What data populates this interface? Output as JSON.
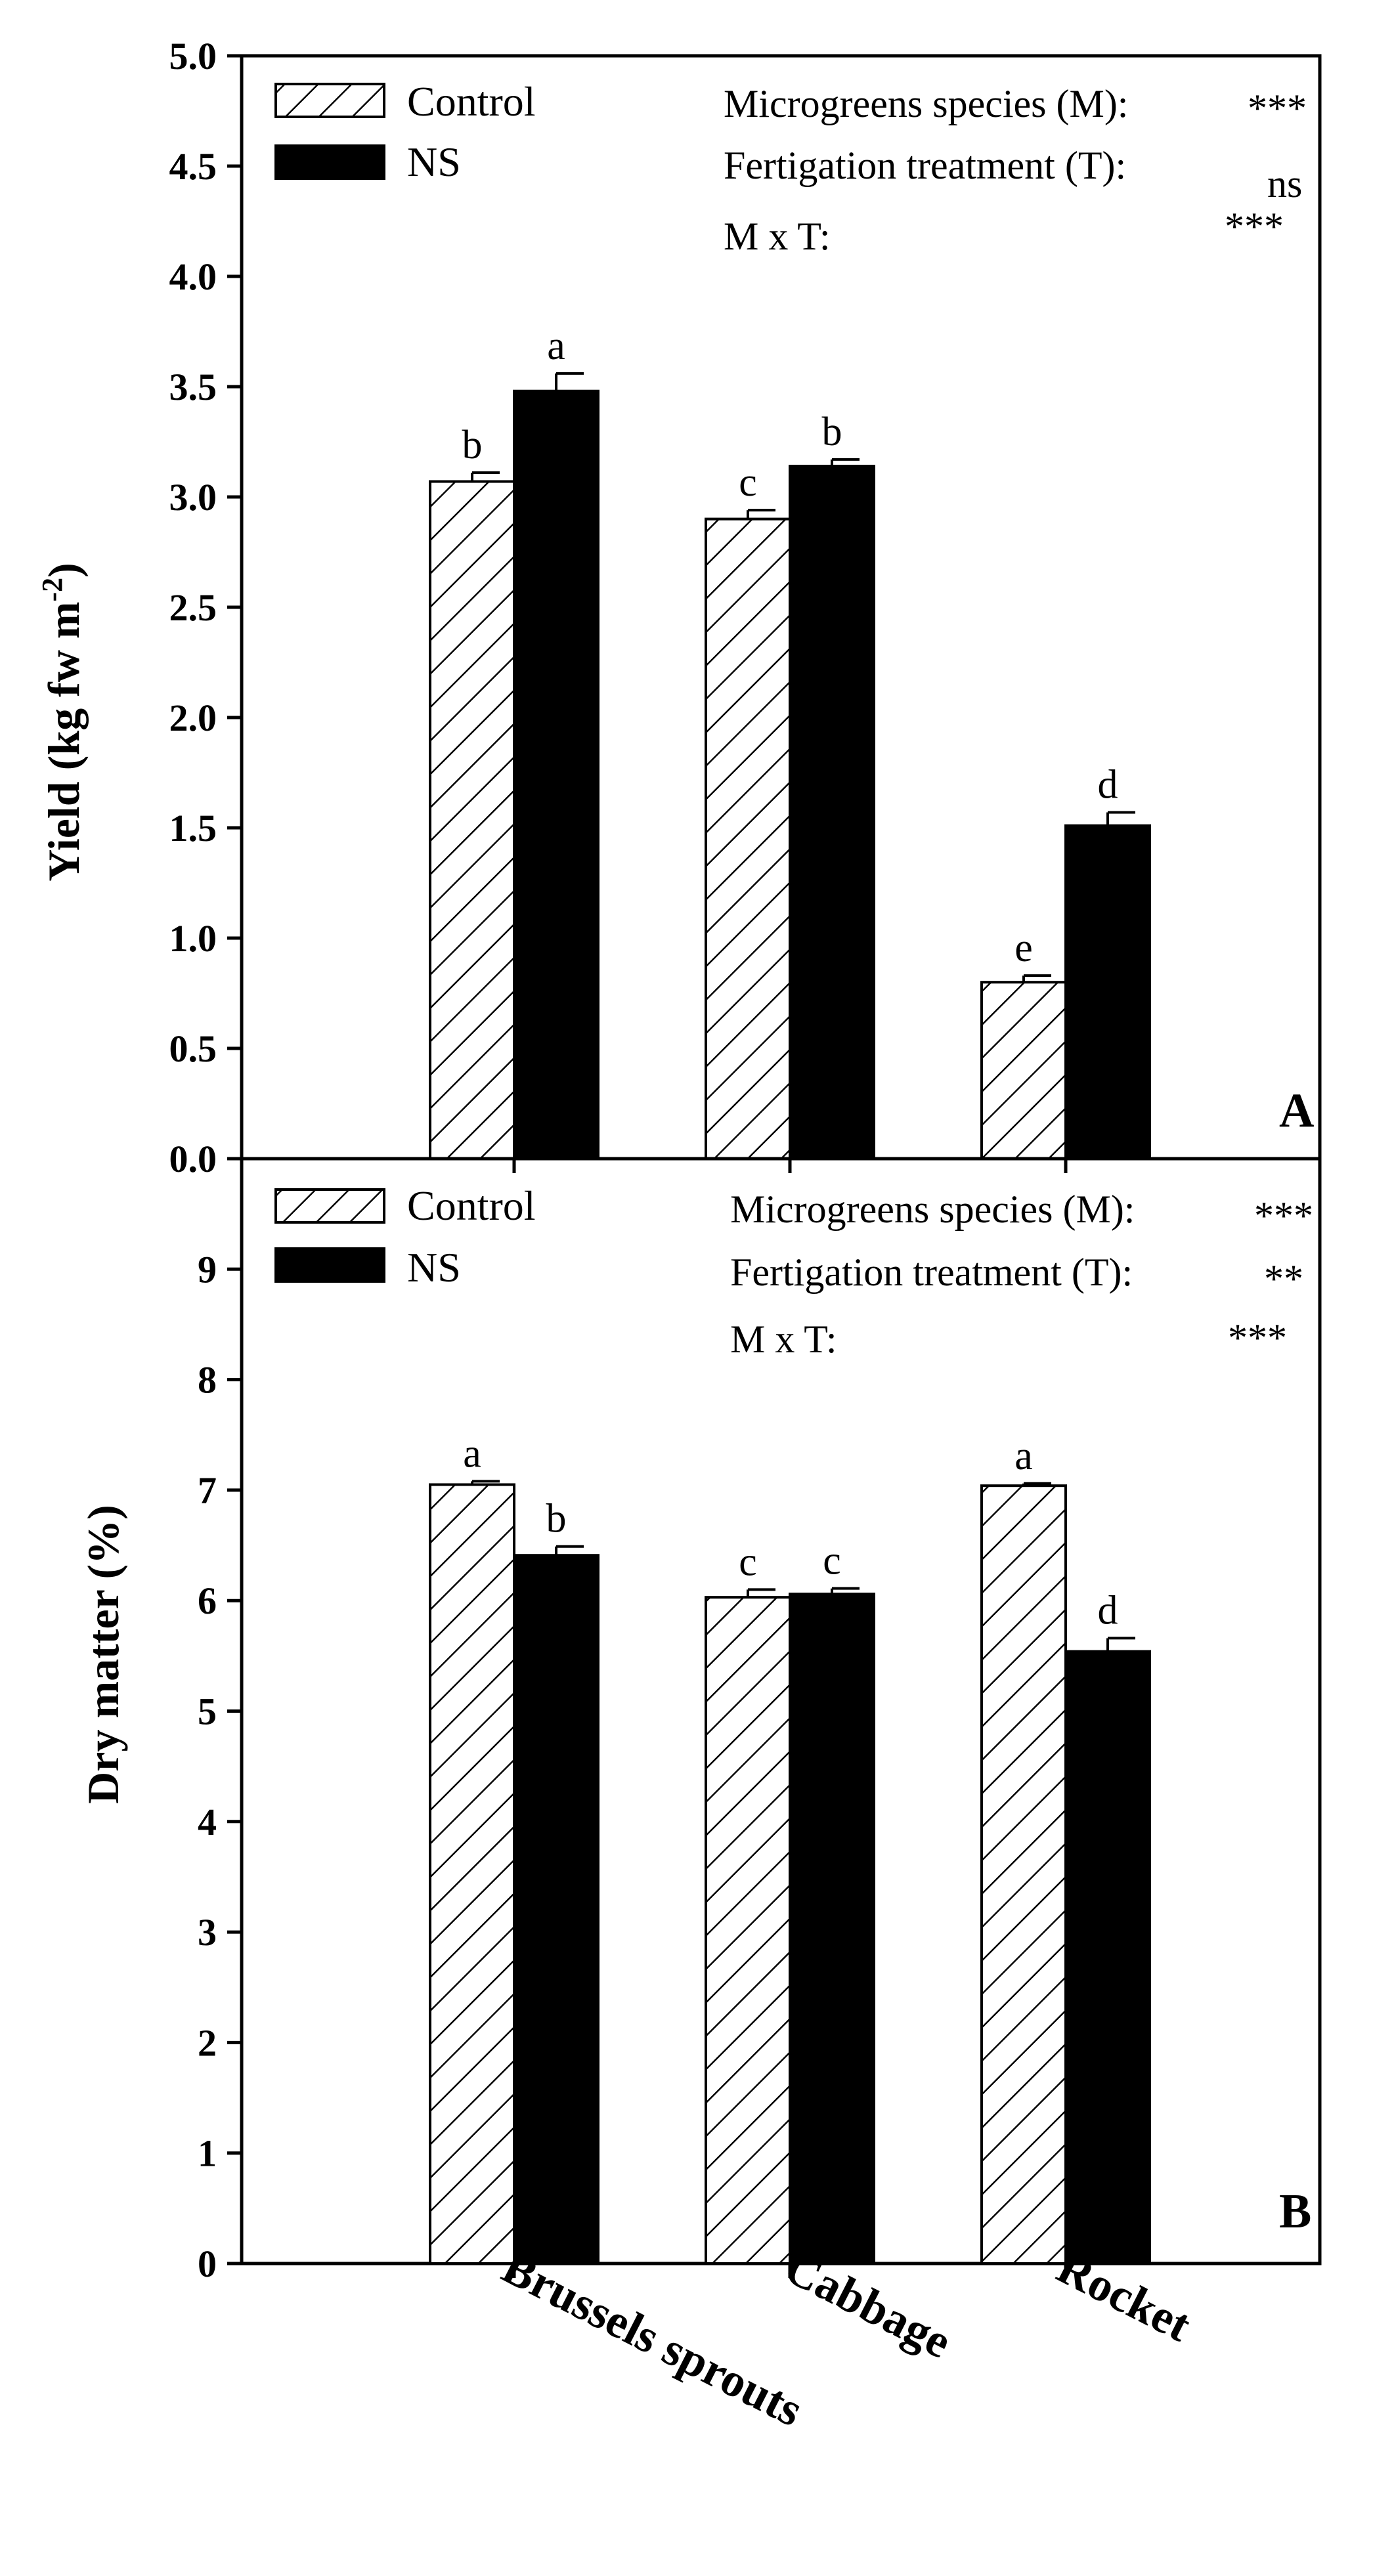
{
  "chart_data": [
    {
      "type": "bar",
      "panel": "A",
      "categories": [
        "Brussels sprouts",
        "Cabbage",
        "Rocket"
      ],
      "series": [
        {
          "name": "Control",
          "pattern": "hatched",
          "values": [
            3.07,
            2.9,
            0.8
          ],
          "errors": [
            0.04,
            0.04,
            0.03
          ],
          "letters": [
            "b",
            "c",
            "e"
          ]
        },
        {
          "name": "NS",
          "pattern": "solid",
          "values": [
            3.48,
            3.14,
            1.51
          ],
          "errors": [
            0.08,
            0.03,
            0.06
          ],
          "letters": [
            "a",
            "b",
            "d"
          ]
        }
      ],
      "ylabel": "Yield (kg fw m",
      "ylabel_sup": "-2",
      "ylabel_close": ")",
      "ylim": [
        0,
        5
      ],
      "yticks": [
        "0.0",
        "0.5",
        "1.0",
        "1.5",
        "2.0",
        "2.5",
        "3.0",
        "3.5",
        "4.0",
        "4.5",
        "5.0"
      ],
      "stats": [
        {
          "label": "Microgreens species (M):",
          "sig": "***"
        },
        {
          "label": "Fertigation treatment (T):",
          "sig": "ns"
        },
        {
          "label": "M x T:",
          "sig": "***"
        }
      ],
      "legend_position": "top-left"
    },
    {
      "type": "bar",
      "panel": "B",
      "categories": [
        "Brussels sprouts",
        "Cabbage",
        "Rocket"
      ],
      "series": [
        {
          "name": "Control",
          "pattern": "hatched",
          "values": [
            7.05,
            6.03,
            7.04
          ],
          "errors": [
            0.03,
            0.07,
            0.02
          ],
          "letters": [
            "a",
            "c",
            "a"
          ]
        },
        {
          "name": "NS",
          "pattern": "solid",
          "values": [
            6.41,
            6.06,
            5.54
          ],
          "errors": [
            0.08,
            0.05,
            0.12
          ],
          "letters": [
            "b",
            "c",
            "d"
          ]
        }
      ],
      "ylabel": "Dry matter (%)",
      "ylim": [
        0,
        10
      ],
      "yticks": [
        "0",
        "1",
        "2",
        "3",
        "4",
        "5",
        "6",
        "7",
        "8",
        "9"
      ],
      "stats": [
        {
          "label": "Microgreens species (M):",
          "sig": "***"
        },
        {
          "label": "Fertigation treatment (T):",
          "sig": "**"
        },
        {
          "label": "M x T:",
          "sig": "***"
        }
      ],
      "legend_position": "top-left"
    }
  ]
}
